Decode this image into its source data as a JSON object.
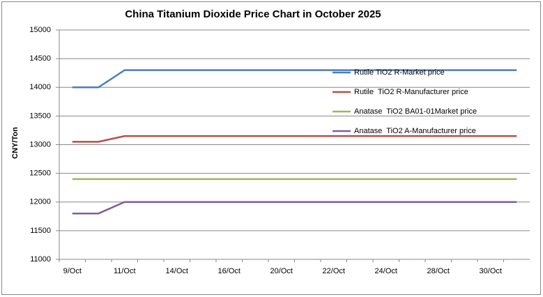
{
  "chart_data": {
    "type": "line",
    "title": "China Titanium Dioxide Price Chart in October 2025",
    "y_label": "CNY/Ton",
    "categories": [
      "9/Oct",
      null,
      "11/Oct",
      null,
      "14/Oct",
      null,
      "16/Oct",
      null,
      "20/Oct",
      null,
      "22/Oct",
      null,
      "24/Oct",
      null,
      "28/Oct",
      null,
      "30/Oct",
      null
    ],
    "series": [
      {
        "name": "Rutile TiO2 R-Market price",
        "color": "#4a7ebb",
        "values": [
          14000,
          14000,
          14300,
          14300,
          14300,
          14300,
          14300,
          14300,
          14300,
          14300,
          14300,
          14300,
          14300,
          14300,
          14300,
          14300,
          14300,
          14300
        ]
      },
      {
        "name": "Rutile  TiO2 R-Manufacturer price",
        "color": "#be4b48",
        "values": [
          13050,
          13050,
          13150,
          13150,
          13150,
          13150,
          13150,
          13150,
          13150,
          13150,
          13150,
          13150,
          13150,
          13150,
          13150,
          13150,
          13150,
          13150
        ]
      },
      {
        "name": "Anatase  TiO2 BA01-01Market price",
        "color": "#98b954",
        "values": [
          12400,
          12400,
          12400,
          12400,
          12400,
          12400,
          12400,
          12400,
          12400,
          12400,
          12400,
          12400,
          12400,
          12400,
          12400,
          12400,
          12400,
          12400
        ]
      },
      {
        "name": "Anatase  TiO2 A-Manufacturer price",
        "color": "#7d5fa0",
        "values": [
          11800,
          11800,
          12000,
          12000,
          12000,
          12000,
          12000,
          12000,
          12000,
          12000,
          12000,
          12000,
          12000,
          12000,
          12000,
          12000,
          12000,
          12000
        ]
      }
    ],
    "ylim": [
      11000,
      15000
    ],
    "yticks": [
      11000,
      11500,
      12000,
      12500,
      13000,
      13500,
      14000,
      14500,
      15000
    ],
    "grid": true,
    "legend": "right"
  }
}
